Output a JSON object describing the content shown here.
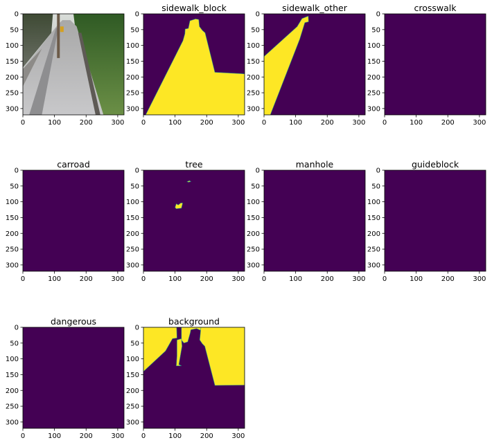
{
  "figure": {
    "colors": {
      "low": "#440154",
      "high": "#fde725",
      "mid": "#21918c",
      "axis": "#000000"
    }
  },
  "chart_data": [
    {
      "type": "heatmap",
      "title": "",
      "content": "photo",
      "xlim": [
        0,
        320
      ],
      "ylim": [
        320,
        0
      ],
      "xticks": [
        "0",
        "100",
        "200",
        "300"
      ],
      "yticks": [
        "0",
        "50",
        "100",
        "150",
        "200",
        "250",
        "300"
      ],
      "regions": []
    },
    {
      "type": "heatmap",
      "title": "sidewalk_block",
      "xlim": [
        0,
        320
      ],
      "ylim": [
        320,
        0
      ],
      "xticks": [
        "0",
        "100",
        "200",
        "300"
      ],
      "yticks": [
        "0",
        "50",
        "100",
        "150",
        "200",
        "250",
        "300"
      ],
      "regions": [
        [
          [
            7,
            320
          ],
          [
            125,
            85
          ],
          [
            131,
            63
          ],
          [
            132,
            48
          ],
          [
            142,
            46
          ],
          [
            147,
            22
          ],
          [
            165,
            16
          ],
          [
            175,
            18
          ],
          [
            177,
            40
          ],
          [
            186,
            52
          ],
          [
            195,
            60
          ],
          [
            226,
            185
          ],
          [
            320,
            190
          ],
          [
            320,
            320
          ]
        ]
      ]
    },
    {
      "type": "heatmap",
      "title": "sidewalk_other",
      "xlim": [
        0,
        320
      ],
      "ylim": [
        320,
        0
      ],
      "xticks": [
        "0",
        "100",
        "200",
        "300"
      ],
      "yticks": [
        "0",
        "50",
        "100",
        "150",
        "200",
        "250",
        "300"
      ],
      "regions": [
        [
          [
            0,
            135
          ],
          [
            105,
            40
          ],
          [
            120,
            15
          ],
          [
            140,
            7
          ],
          [
            141,
            25
          ],
          [
            129,
            28
          ],
          [
            113,
            80
          ],
          [
            20,
            320
          ],
          [
            0,
            320
          ]
        ]
      ]
    },
    {
      "type": "heatmap",
      "title": "crosswalk",
      "xlim": [
        0,
        320
      ],
      "ylim": [
        320,
        0
      ],
      "xticks": [
        "0",
        "100",
        "200",
        "300"
      ],
      "yticks": [
        "0",
        "50",
        "100",
        "150",
        "200",
        "250",
        "300"
      ],
      "regions": []
    },
    {
      "type": "heatmap",
      "title": "carroad",
      "xlim": [
        0,
        320
      ],
      "ylim": [
        320,
        0
      ],
      "xticks": [
        "0",
        "100",
        "200",
        "300"
      ],
      "yticks": [
        "0",
        "50",
        "100",
        "150",
        "200",
        "250",
        "300"
      ],
      "regions": []
    },
    {
      "type": "heatmap",
      "title": "tree",
      "xlim": [
        0,
        320
      ],
      "ylim": [
        320,
        0
      ],
      "xticks": [
        "0",
        "100",
        "200",
        "300"
      ],
      "yticks": [
        "0",
        "50",
        "100",
        "150",
        "200",
        "250",
        "300"
      ],
      "regions": [
        [
          [
            100,
            118
          ],
          [
            104,
            106
          ],
          [
            110,
            110
          ],
          [
            118,
            104
          ],
          [
            124,
            104
          ],
          [
            120,
            120
          ],
          [
            104,
            122
          ]
        ],
        [
          [
            138,
            36
          ],
          [
            146,
            33
          ],
          [
            150,
            36
          ],
          [
            142,
            38
          ]
        ]
      ]
    },
    {
      "type": "heatmap",
      "title": "manhole",
      "xlim": [
        0,
        320
      ],
      "ylim": [
        320,
        0
      ],
      "xticks": [
        "0",
        "100",
        "200",
        "300"
      ],
      "yticks": [
        "0",
        "50",
        "100",
        "150",
        "200",
        "250",
        "300"
      ],
      "regions": []
    },
    {
      "type": "heatmap",
      "title": "guideblock",
      "xlim": [
        0,
        320
      ],
      "ylim": [
        320,
        0
      ],
      "xticks": [
        "0",
        "100",
        "200",
        "300"
      ],
      "yticks": [
        "0",
        "50",
        "100",
        "150",
        "200",
        "250",
        "300"
      ],
      "regions": []
    },
    {
      "type": "heatmap",
      "title": "dangerous",
      "xlim": [
        0,
        320
      ],
      "ylim": [
        320,
        0
      ],
      "xticks": [
        "0",
        "100",
        "200",
        "300"
      ],
      "yticks": [
        "0",
        "50",
        "100",
        "150",
        "200",
        "250",
        "300"
      ],
      "regions": []
    },
    {
      "type": "heatmap",
      "title": "background",
      "xlim": [
        0,
        320
      ],
      "ylim": [
        320,
        0
      ],
      "xticks": [
        "0",
        "100",
        "200",
        "300"
      ],
      "yticks": [
        "0",
        "50",
        "100",
        "150",
        "200",
        "250",
        "300"
      ],
      "regions": [
        [
          [
            0,
            135
          ],
          [
            0,
            0
          ],
          [
            105,
            0
          ],
          [
            106,
            34
          ],
          [
            92,
            36
          ],
          [
            70,
            75
          ],
          [
            0,
            140
          ]
        ],
        [
          [
            120,
            0
          ],
          [
            120,
            40
          ],
          [
            128,
            50
          ],
          [
            140,
            46
          ],
          [
            148,
            18
          ],
          [
            150,
            8
          ],
          [
            168,
            4
          ],
          [
            182,
            10
          ],
          [
            196,
            0
          ]
        ],
        [
          [
            182,
            0
          ],
          [
            320,
            0
          ],
          [
            320,
            183
          ],
          [
            226,
            184
          ],
          [
            194,
            60
          ],
          [
            186,
            52
          ],
          [
            178,
            40
          ]
        ],
        [
          [
            106,
            40
          ],
          [
            120,
            36
          ],
          [
            122,
            60
          ],
          [
            112,
            118
          ],
          [
            120,
            122
          ],
          [
            104,
            122
          ],
          [
            106,
            90
          ]
        ]
      ]
    }
  ]
}
